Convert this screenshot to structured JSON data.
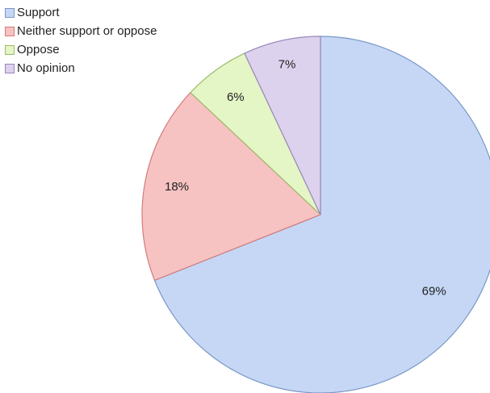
{
  "chart_data": {
    "type": "pie",
    "title": "",
    "slices": [
      {
        "name": "Support",
        "value": 69,
        "label": "69%",
        "color": "#c5d7f5",
        "stroke": "#7b97c6"
      },
      {
        "name": "Neither support or oppose",
        "value": 18,
        "label": "18%",
        "color": "#f6c3c2",
        "stroke": "#d27c7a"
      },
      {
        "name": "Oppose",
        "value": 6,
        "label": "6%",
        "color": "#e4f5c6",
        "stroke": "#9cbb6a"
      },
      {
        "name": "No opinion",
        "value": 7,
        "label": "7%",
        "color": "#ddd2ee",
        "stroke": "#9986bb"
      }
    ],
    "legend_position": "top-left"
  }
}
